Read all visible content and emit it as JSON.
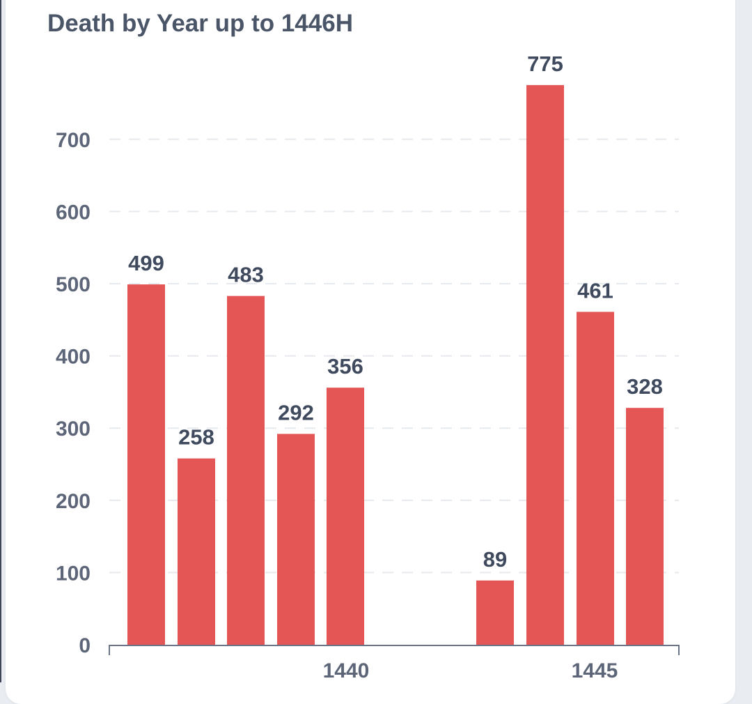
{
  "chart_data": {
    "type": "bar",
    "title": "Death by Year up to 1446H",
    "xlabel": "",
    "ylabel": "",
    "ylim": [
      0,
      800
    ],
    "yticks": [
      "0",
      "100",
      "200",
      "300",
      "400",
      "500",
      "600",
      "700"
    ],
    "x_tick_labels": [
      "1440",
      "1445"
    ],
    "grid": true,
    "bar_color": "#e45555",
    "bars": [
      {
        "group": "1440",
        "value": 499
      },
      {
        "group": "1440",
        "value": 258
      },
      {
        "group": "1440",
        "value": 483
      },
      {
        "group": "1440",
        "value": 292
      },
      {
        "group": "1440",
        "value": 356
      },
      {
        "group": "1445",
        "value": 89
      },
      {
        "group": "1445",
        "value": 775
      },
      {
        "group": "1445",
        "value": 461
      },
      {
        "group": "1445",
        "value": 328
      }
    ],
    "data_labels": [
      "499",
      "258",
      "483",
      "292",
      "356",
      "89",
      "775",
      "461",
      "328"
    ]
  }
}
